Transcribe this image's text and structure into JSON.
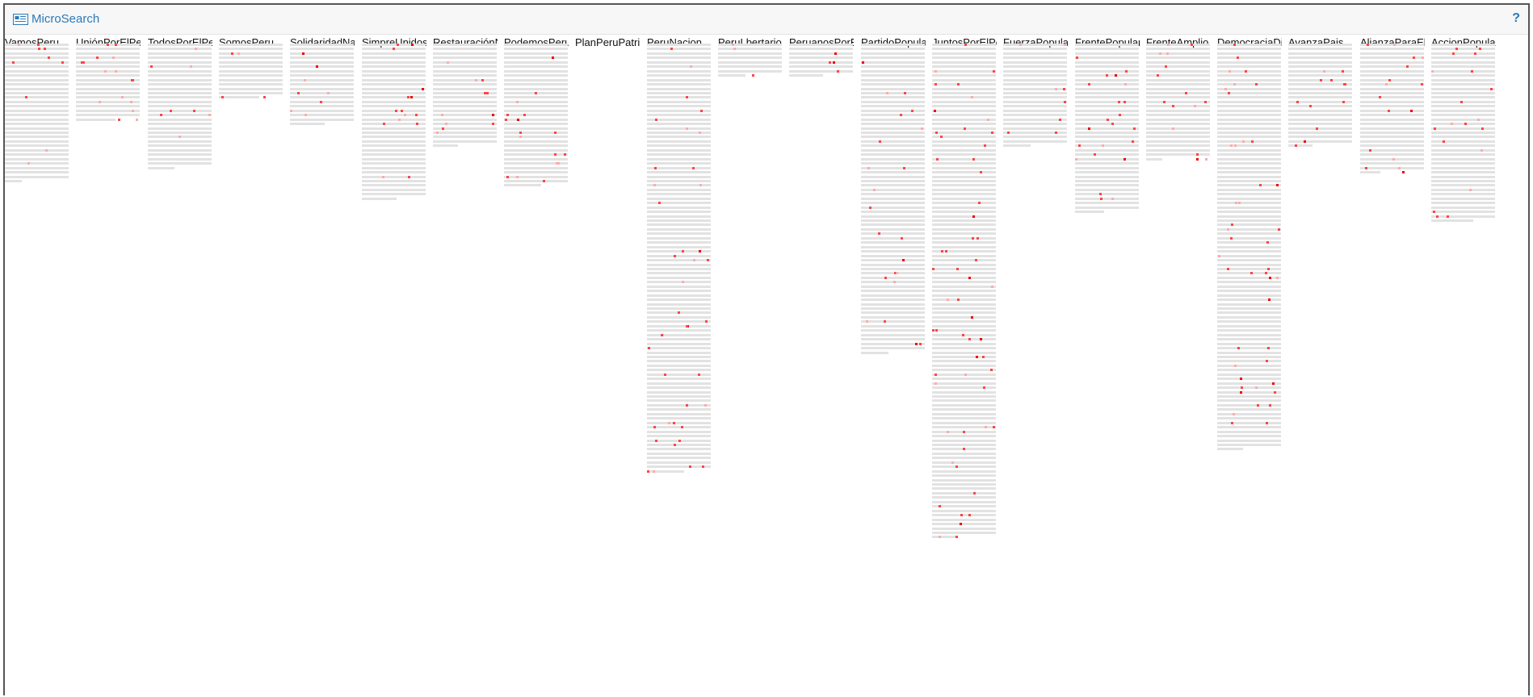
{
  "app": {
    "title": "MicroSearch",
    "help_label": "?",
    "icon": "newspaper-icon",
    "accent_color": "#2a7ab8"
  },
  "colors": {
    "row": "#e2e2e2",
    "hit": "#ff4545",
    "hit_weak": "#ffaaaa",
    "hit_strong": "#ee0000"
  },
  "columns": [
    {
      "name": "VamosPeru",
      "rows": 32
    },
    {
      "name": "UniónPorElPeru",
      "rows": 18
    },
    {
      "name": "TodosPorElPeru",
      "rows": 29
    },
    {
      "name": "SomosPeru",
      "rows": 13
    },
    {
      "name": "SolidaridadNacional",
      "rows": 19
    },
    {
      "name": "SimpreUnidos",
      "rows": 36
    },
    {
      "name": "RestauraciónNacional",
      "rows": 24
    },
    {
      "name": "PodemosPeru",
      "rows": 33
    },
    {
      "name": "PlanPeruPatria",
      "rows": 0
    },
    {
      "name": "PeruNacion",
      "rows": 98
    },
    {
      "name": "PeruLbertario",
      "rows": 8
    },
    {
      "name": "PeruanosPorElKambio",
      "rows": 8
    },
    {
      "name": "PartidoPopular",
      "rows": 71
    },
    {
      "name": "JuntosPorElPeru",
      "rows": 113
    },
    {
      "name": "FuerzaPopular",
      "rows": 24
    },
    {
      "name": "FrentePopular",
      "rows": 39
    },
    {
      "name": "FrenteAmplio",
      "rows": 27
    },
    {
      "name": "DemocraciaDirecta",
      "rows": 93
    },
    {
      "name": "AvanzaPais",
      "rows": 24
    },
    {
      "name": "AlianzaParaElProgreso",
      "rows": 30
    },
    {
      "name": "AccionPopular",
      "rows": 41
    }
  ]
}
